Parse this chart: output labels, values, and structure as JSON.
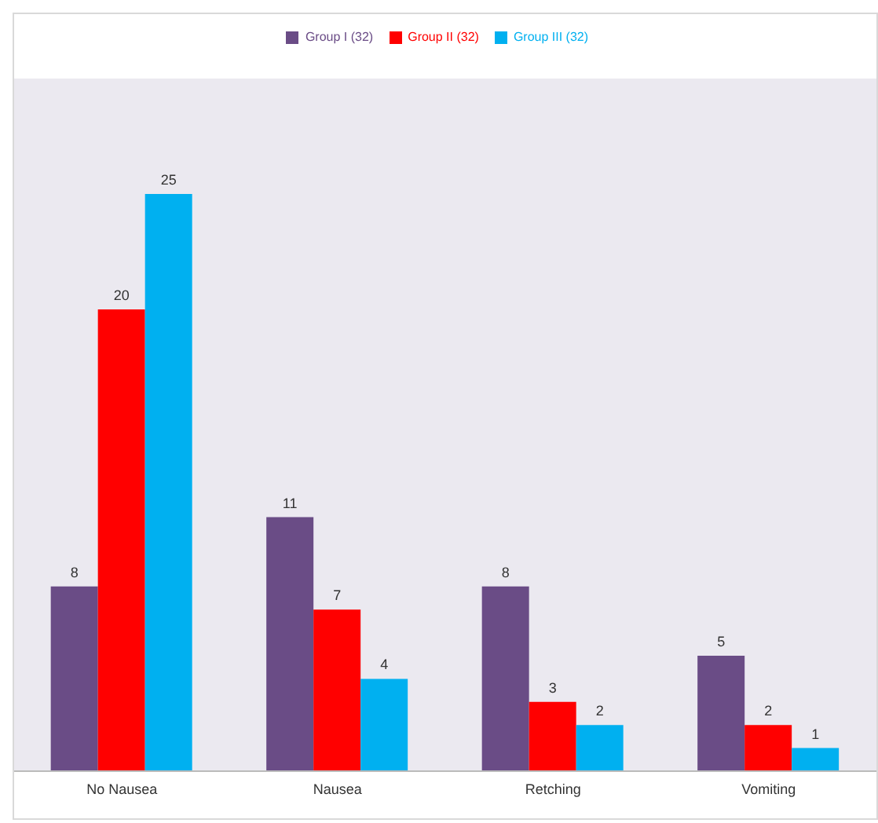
{
  "chart_data": {
    "type": "bar",
    "categories": [
      "No Nausea",
      "Nausea",
      "Retching",
      "Vomiting"
    ],
    "series": [
      {
        "name": "Group I (32)",
        "color": "#6a4c86",
        "values": [
          8,
          11,
          8,
          5
        ]
      },
      {
        "name": "Group II (32)",
        "color": "#ff0000",
        "values": [
          20,
          7,
          3,
          2
        ]
      },
      {
        "name": "Group III (32)",
        "color": "#00b0f0",
        "values": [
          25,
          4,
          2,
          1
        ]
      }
    ],
    "data_labels": true,
    "legend": "top",
    "grid": false
  }
}
